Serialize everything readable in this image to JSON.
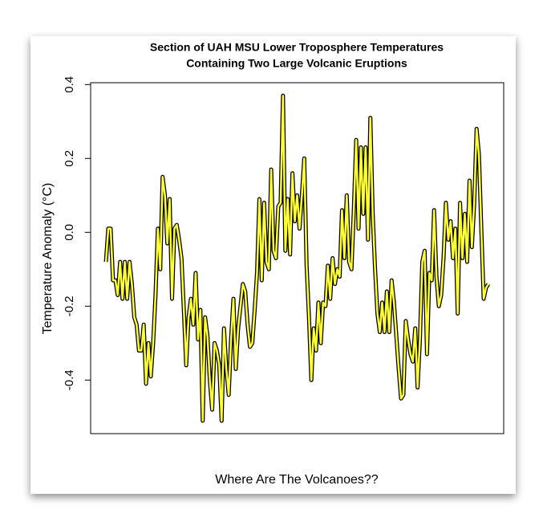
{
  "chart_data": {
    "type": "line",
    "title": [
      "Section of UAH MSU Lower Troposphere Temperatures",
      "Containing Two Large Volcanic Eruptions"
    ],
    "y_label": "Temperature Anomaly (°C)",
    "x_label": "Where Are The Volcanoes??",
    "color": "#ffff33",
    "outline_color": "#000000",
    "ylim": [
      -0.545,
      0.405
    ],
    "yticks": [
      -0.4,
      -0.2,
      {
        "value": 0,
        "label": "0.0"
      },
      0.2,
      0.4
    ],
    "values": [
      -0.08,
      0.01,
      0.01,
      -0.13,
      -0.13,
      -0.17,
      -0.08,
      -0.18,
      -0.08,
      -0.18,
      -0.08,
      -0.14,
      -0.23,
      -0.25,
      -0.32,
      -0.32,
      -0.25,
      -0.41,
      -0.3,
      -0.39,
      -0.3,
      -0.17,
      0.01,
      -0.1,
      0.15,
      0.1,
      -0.03,
      0.09,
      -0.18,
      0.01,
      0.02,
      -0.02,
      -0.07,
      -0.21,
      -0.36,
      -0.23,
      -0.18,
      -0.25,
      -0.11,
      -0.29,
      -0.21,
      -0.51,
      -0.23,
      -0.28,
      -0.4,
      -0.48,
      -0.3,
      -0.32,
      -0.36,
      -0.51,
      -0.26,
      -0.37,
      -0.44,
      -0.29,
      -0.18,
      -0.37,
      -0.26,
      -0.2,
      -0.14,
      -0.16,
      -0.25,
      -0.31,
      -0.3,
      -0.21,
      -0.11,
      0.09,
      -0.13,
      0.08,
      -0.08,
      -0.1,
      0.17,
      -0.05,
      -0.07,
      0.07,
      0.08,
      0.37,
      -0.05,
      0.09,
      -0.06,
      0.16,
      0.03,
      0.1,
      0.01,
      0.1,
      0.2,
      -0.09,
      -0.23,
      -0.4,
      -0.26,
      -0.32,
      -0.19,
      -0.3,
      -0.19,
      -0.2,
      -0.09,
      -0.18,
      -0.07,
      -0.14,
      -0.1,
      -0.12,
      0.06,
      -0.07,
      0.1,
      -0.08,
      -0.1,
      0.06,
      0.25,
      0.01,
      0.23,
      0.05,
      0.23,
      -0.02,
      0.31,
      0.05,
      -0.1,
      -0.22,
      -0.27,
      -0.19,
      -0.27,
      -0.16,
      -0.27,
      -0.13,
      -0.19,
      -0.28,
      -0.37,
      -0.45,
      -0.44,
      -0.24,
      -0.29,
      -0.33,
      -0.35,
      -0.26,
      -0.42,
      -0.29,
      -0.08,
      -0.05,
      -0.33,
      -0.11,
      -0.13,
      0.06,
      -0.12,
      -0.2,
      -0.17,
      -0.07,
      0.08,
      -0.02,
      0.03,
      -0.07,
      0.01,
      -0.22,
      0.08,
      -0.07,
      0.05,
      -0.08,
      0.14,
      -0.04,
      0.08,
      0.28,
      0.21,
      0.01,
      -0.18,
      -0.15,
      -0.14
    ]
  }
}
